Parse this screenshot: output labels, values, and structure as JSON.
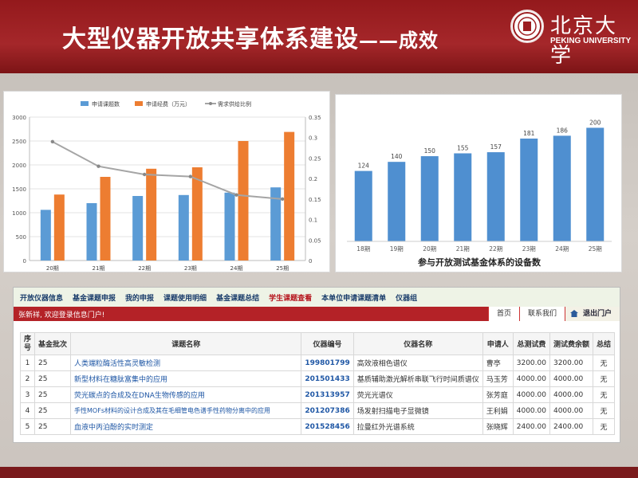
{
  "header": {
    "title": "大型仪器开放共享体系建设",
    "title_suffix": "——成效",
    "logo_cn": "北京大学",
    "logo_en": "PEKING UNIVERSITY"
  },
  "colors": {
    "header_red": "#a4262a",
    "bar_blue": "#5b9bd5",
    "bar_orange": "#ed7d31",
    "line_gray": "#a5a5a5",
    "nav_blue": "#1a3d6b",
    "link_blue": "#1f57a5"
  },
  "chart_data": [
    {
      "type": "bar",
      "title": "",
      "categories": [
        "20期",
        "21期",
        "22期",
        "23期",
        "24期",
        "25期"
      ],
      "series": [
        {
          "name": "申请课题数",
          "values": [
            1060,
            1200,
            1350,
            1370,
            1420,
            1530
          ]
        },
        {
          "name": "申请经费（万元）",
          "values": [
            1380,
            1750,
            1920,
            1950,
            2500,
            2690
          ]
        },
        {
          "name": "需求供给比例",
          "type": "line",
          "axis": "right",
          "values": [
            0.29,
            0.23,
            0.21,
            0.205,
            0.16,
            0.15
          ]
        }
      ],
      "left_ylim": [
        0,
        3000
      ],
      "left_ticks": [
        "0",
        "500",
        "1000",
        "1500",
        "2000",
        "2500",
        "3000"
      ],
      "right_ylim": [
        0,
        0.35
      ],
      "right_ticks": [
        "0",
        "0.05",
        "0.1",
        "0.15",
        "0.2",
        "0.25",
        "0.3",
        "0.35"
      ],
      "legend_position": "top",
      "grid": true
    },
    {
      "type": "bar",
      "title": "参与开放测试基金体系的设备数",
      "categories": [
        "18期",
        "19期",
        "20期",
        "21期",
        "22期",
        "23期",
        "24期",
        "25期"
      ],
      "values": [
        124,
        140,
        150,
        155,
        157,
        181,
        186,
        200
      ],
      "data_labels": [
        "124",
        "140",
        "150",
        "155",
        "157",
        "181",
        "186",
        "200"
      ],
      "grid": false
    }
  ],
  "portal": {
    "nav": [
      "开放仪器信息",
      "基金课题申报",
      "我的申报",
      "课题使用明细",
      "基金课题总结",
      "学生课题查看",
      "本单位申请课题清单",
      "仪器组"
    ],
    "active_nav": "学生课题查看",
    "welcome": "张新祥, 欢迎登录信息门户!",
    "home": "首页",
    "contact": "联系我们",
    "logout": "退出门户",
    "columns": [
      "序号",
      "基金批次",
      "课题名称",
      "仪器编号",
      "仪器名称",
      "申请人",
      "总测试费",
      "测试费余额",
      "总结"
    ],
    "rows": [
      [
        "1",
        "25",
        "人类端粒酶活性高灵敏检测",
        "199801799",
        "高效液相色谱仪",
        "曹亭",
        "3200.00",
        "3200.00",
        "无"
      ],
      [
        "2",
        "25",
        "新型材料在糖肽富集中的应用",
        "201501433",
        "基质辅助激光解析串联飞行时间质谱仪",
        "马玉芳",
        "4000.00",
        "4000.00",
        "无"
      ],
      [
        "3",
        "25",
        "荧光碳点的合成及在DNA生物传感的应用",
        "201313957",
        "荧光光谱仪",
        "张芳庭",
        "4000.00",
        "4000.00",
        "无"
      ],
      [
        "4",
        "25",
        "手性MOFs材料的设计合成及其在毛细管电色谱手性药物分离中的应用",
        "201207386",
        "场发射扫描电子显微镜",
        "王利娟",
        "4000.00",
        "4000.00",
        "无"
      ],
      [
        "5",
        "25",
        "血液中丙泊酚的实时测定",
        "201528456",
        "拉曼红外光谱系统",
        "张晓辉",
        "2400.00",
        "2400.00",
        "无"
      ]
    ]
  }
}
